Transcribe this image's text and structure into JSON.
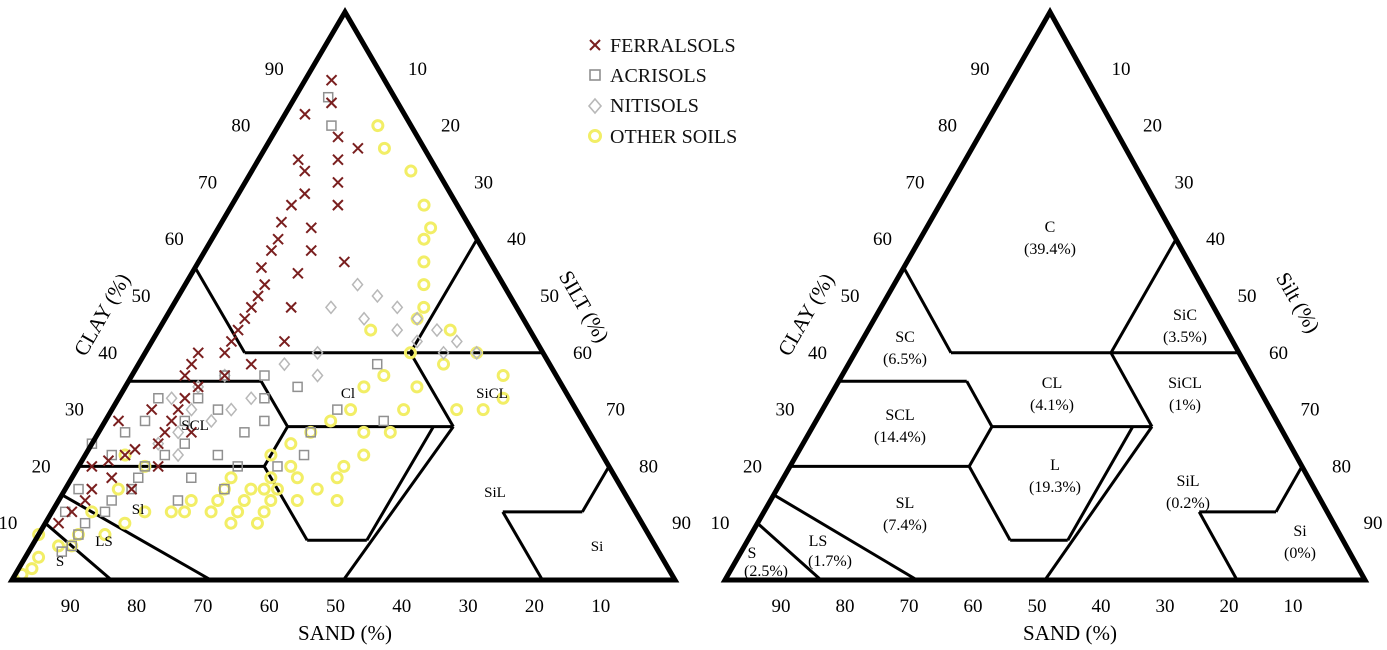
{
  "chart_data": [
    {
      "type": "scatter",
      "chart": "soil texture triangle",
      "axes": {
        "left": {
          "label": "CLAY (%)",
          "ticks": [
            "10",
            "20",
            "30",
            "40",
            "50",
            "60",
            "70",
            "80",
            "90"
          ]
        },
        "right": {
          "label": "SILT (%)",
          "ticks": [
            "10",
            "20",
            "30",
            "40",
            "50",
            "60",
            "70",
            "80",
            "90"
          ]
        },
        "bottom": {
          "label": "SAND (%)",
          "ticks": [
            "90",
            "80",
            "70",
            "60",
            "50",
            "40",
            "30",
            "20",
            "10"
          ]
        }
      },
      "legend": {
        "position": "top-right",
        "entries": [
          {
            "name": "FERRALSOLS",
            "marker": "x",
            "color": "#7a1f1f"
          },
          {
            "name": "ACRISOLS",
            "marker": "square",
            "color": "#909090"
          },
          {
            "name": "NITISOLS",
            "marker": "diamond",
            "color": "#b8b8b8"
          },
          {
            "name": "OTHER SOILS",
            "marker": "circle",
            "color": "#f2ee66"
          }
        ]
      },
      "regions": [
        "Cl",
        "SCL",
        "SiCL",
        "SiL",
        "Si",
        "Sl",
        "LS",
        "S"
      ],
      "series": [
        {
          "name": "FERRALSOLS",
          "points": [
            [
              15,
              82,
              3
            ],
            [
              12,
              78,
              10
            ],
            [
              14,
              74,
              12
            ],
            [
              20,
              72,
              8
            ],
            [
              22,
              68,
              10
            ],
            [
              25,
              66,
              9
            ],
            [
              28,
              63,
              9
            ],
            [
              30,
              60,
              10
            ],
            [
              32,
              58,
              10
            ],
            [
              24,
              62,
              14
            ],
            [
              18,
              66,
              16
            ],
            [
              35,
              55,
              10
            ],
            [
              36,
              52,
              12
            ],
            [
              38,
              50,
              12
            ],
            [
              40,
              48,
              12
            ],
            [
              30,
              54,
              16
            ],
            [
              26,
              58,
              16
            ],
            [
              42,
              46,
              12
            ],
            [
              44,
              44,
              12
            ],
            [
              46,
              42,
              12
            ],
            [
              48,
              40,
              12
            ],
            [
              45,
              38,
              17
            ],
            [
              50,
              36,
              14
            ],
            [
              55,
              34,
              11
            ],
            [
              58,
              32,
              10
            ],
            [
              60,
              30,
              10
            ],
            [
              62,
              28,
              10
            ],
            [
              64,
              26,
              10
            ],
            [
              66,
              24,
              10
            ],
            [
              70,
              23,
              7
            ],
            [
              72,
              22,
              6
            ],
            [
              75,
              21,
              4
            ],
            [
              78,
              20,
              2
            ],
            [
              76,
              18,
              6
            ],
            [
              80,
              16,
              4
            ],
            [
              82,
              14,
              4
            ],
            [
              85,
              12,
              3
            ],
            [
              88,
              10,
              2
            ],
            [
              52,
              40,
              8
            ],
            [
              54,
              38,
              8
            ],
            [
              20,
              74,
              6
            ],
            [
              10,
              84,
              6
            ],
            [
              8,
              88,
              4
            ],
            [
              16,
              70,
              14
            ],
            [
              34,
              48,
              18
            ],
            [
              38,
              42,
              20
            ],
            [
              56,
              36,
              8
            ],
            [
              60,
              26,
              14
            ],
            [
              68,
              20,
              12
            ],
            [
              74,
              16,
              10
            ],
            [
              10,
              76,
              14
            ],
            [
              22,
              56,
              22
            ],
            [
              64,
              30,
              6
            ],
            [
              70,
              28,
              2
            ]
          ]
        },
        {
          "name": "ACRISOLS",
          "points": [
            [
              10,
              85,
              5
            ],
            [
              12,
              80,
              8
            ],
            [
              50,
              36,
              14
            ],
            [
              56,
              32,
              12
            ],
            [
              60,
              28,
              12
            ],
            [
              62,
              24,
              14
            ],
            [
              66,
              22,
              12
            ],
            [
              70,
              20,
              10
            ],
            [
              72,
              18,
              10
            ],
            [
              74,
              16,
              10
            ],
            [
              78,
              14,
              8
            ],
            [
              80,
              12,
              8
            ],
            [
              84,
              10,
              6
            ],
            [
              86,
              8,
              6
            ],
            [
              88,
              6,
              6
            ],
            [
              90,
              5,
              5
            ],
            [
              58,
              22,
              20
            ],
            [
              52,
              26,
              22
            ],
            [
              48,
              28,
              24
            ],
            [
              46,
              32,
              22
            ],
            [
              54,
              30,
              16
            ],
            [
              64,
              18,
              18
            ],
            [
              68,
              14,
              18
            ],
            [
              82,
              16,
              2
            ],
            [
              76,
              24,
              0
            ],
            [
              44,
              36,
              20
            ],
            [
              40,
              34,
              26
            ],
            [
              62,
              32,
              6
            ],
            [
              66,
              28,
              6
            ],
            [
              56,
              20,
              24
            ],
            [
              60,
              16,
              24
            ],
            [
              50,
              20,
              30
            ],
            [
              45,
              22,
              33
            ],
            [
              70,
              26,
              4
            ],
            [
              74,
              22,
              4
            ],
            [
              30,
              28,
              42
            ],
            [
              26,
              38,
              36
            ],
            [
              42,
              26,
              32
            ],
            [
              36,
              30,
              34
            ],
            [
              86,
              12,
              2
            ]
          ]
        },
        {
          "name": "NITISOLS",
          "points": [
            [
              22,
              52,
              26
            ],
            [
              20,
              50,
              30
            ],
            [
              18,
              48,
              34
            ],
            [
              16,
              46,
              38
            ],
            [
              14,
              44,
              42
            ],
            [
              12,
              42,
              46
            ],
            [
              10,
              40,
              50
            ],
            [
              15,
              40,
              45
            ],
            [
              20,
              44,
              36
            ],
            [
              18,
              42,
              40
            ],
            [
              24,
              46,
              30
            ],
            [
              50,
              36,
              14
            ],
            [
              55,
              34,
              11
            ],
            [
              60,
              32,
              8
            ],
            [
              58,
              30,
              12
            ],
            [
              52,
              30,
              18
            ],
            [
              66,
              24,
              10
            ],
            [
              62,
              26,
              12
            ],
            [
              34,
              40,
              26
            ],
            [
              36,
              36,
              28
            ],
            [
              28,
              48,
              24
            ],
            [
              40,
              38,
              22
            ],
            [
              48,
              32,
              20
            ],
            [
              56,
              28,
              16
            ],
            [
              64,
              22,
              14
            ]
          ]
        },
        {
          "name": "OTHER SOILS",
          "points": [
            [
              5,
              80,
              15
            ],
            [
              6,
              76,
              18
            ],
            [
              4,
              72,
              24
            ],
            [
              5,
              66,
              29
            ],
            [
              6,
              62,
              32
            ],
            [
              8,
              60,
              32
            ],
            [
              10,
              56,
              34
            ],
            [
              12,
              52,
              36
            ],
            [
              14,
              48,
              38
            ],
            [
              16,
              46,
              38
            ],
            [
              12,
              44,
              44
            ],
            [
              10,
              40,
              50
            ],
            [
              8,
              36,
              56
            ],
            [
              10,
              32,
              58
            ],
            [
              14,
              30,
              56
            ],
            [
              18,
              30,
              52
            ],
            [
              22,
              34,
              44
            ],
            [
              26,
              36,
              38
            ],
            [
              30,
              34,
              36
            ],
            [
              34,
              30,
              36
            ],
            [
              38,
              28,
              34
            ],
            [
              42,
              26,
              32
            ],
            [
              46,
              24,
              30
            ],
            [
              50,
              22,
              28
            ],
            [
              48,
              20,
              32
            ],
            [
              52,
              18,
              30
            ],
            [
              46,
              16,
              38
            ],
            [
              50,
              14,
              36
            ],
            [
              54,
              14,
              32
            ],
            [
              58,
              14,
              28
            ],
            [
              62,
              14,
              24
            ],
            [
              66,
              14,
              20
            ],
            [
              70,
              12,
              18
            ],
            [
              74,
              12,
              14
            ],
            [
              78,
              10,
              12
            ],
            [
              82,
              8,
              10
            ],
            [
              86,
              8,
              6
            ],
            [
              90,
              6,
              4
            ],
            [
              94,
              4,
              2
            ],
            [
              96,
              2,
              2
            ],
            [
              98,
              1,
              1
            ],
            [
              92,
              8,
              0
            ],
            [
              88,
              6,
              6
            ],
            [
              52,
              16,
              32
            ],
            [
              54,
              16,
              30
            ],
            [
              56,
              16,
              28
            ],
            [
              60,
              16,
              24
            ],
            [
              58,
              18,
              24
            ],
            [
              48,
              18,
              34
            ],
            [
              44,
              14,
              42
            ],
            [
              42,
              18,
              40
            ],
            [
              56,
              12,
              32
            ],
            [
              60,
              12,
              28
            ],
            [
              64,
              12,
              24
            ],
            [
              68,
              12,
              20
            ],
            [
              58,
              10,
              32
            ],
            [
              62,
              10,
              28
            ],
            [
              30,
              26,
              44
            ],
            [
              26,
              30,
              44
            ],
            [
              34,
              26,
              40
            ],
            [
              36,
              22,
              42
            ],
            [
              40,
              20,
              40
            ],
            [
              70,
              20,
              10
            ],
            [
              76,
              16,
              8
            ],
            [
              82,
              12,
              6
            ],
            [
              20,
              40,
              40
            ],
            [
              24,
              44,
              32
            ],
            [
              16,
              38,
              46
            ],
            [
              72,
              22,
              6
            ]
          ]
        }
      ]
    },
    {
      "type": "diagram",
      "chart": "soil texture triangle with class shares",
      "axes": {
        "left": {
          "label": "CLAY (%)",
          "ticks": [
            "10",
            "20",
            "30",
            "40",
            "50",
            "60",
            "70",
            "80",
            "90"
          ]
        },
        "right": {
          "label": "Silt (%)",
          "ticks": [
            "10",
            "20",
            "30",
            "40",
            "50",
            "60",
            "70",
            "80",
            "90"
          ]
        },
        "bottom": {
          "label": "SAND (%)",
          "ticks": [
            "90",
            "80",
            "70",
            "60",
            "50",
            "40",
            "30",
            "20",
            "10"
          ]
        }
      },
      "regions": [
        {
          "code": "C",
          "share": "(39.4%)"
        },
        {
          "code": "SiC",
          "share": "(3.5%)"
        },
        {
          "code": "SC",
          "share": "(6.5%)"
        },
        {
          "code": "CL",
          "share": "(4.1%)"
        },
        {
          "code": "SiCL",
          "share": "(1%)"
        },
        {
          "code": "SCL",
          "share": "(14.4%)"
        },
        {
          "code": "L",
          "share": "(19.3%)"
        },
        {
          "code": "SiL",
          "share": "(0.2%)"
        },
        {
          "code": "SL",
          "share": "(7.4%)"
        },
        {
          "code": "LS",
          "share": "(1.7%)"
        },
        {
          "code": "S",
          "share": "(2.5%)"
        },
        {
          "code": "Si",
          "share": "(0%)"
        }
      ]
    }
  ]
}
